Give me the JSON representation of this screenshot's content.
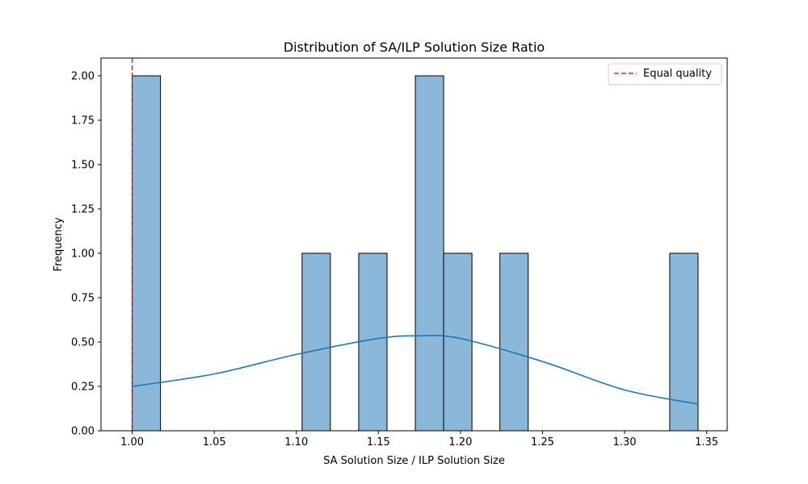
{
  "chart_data": {
    "type": "bar",
    "title": "Distribution of SA/ILP Solution Size Ratio",
    "xlabel": "SA Solution Size / ILP Solution Size",
    "ylabel": "Frequency",
    "xlim": [
      0.981,
      1.3625
    ],
    "ylim": [
      0,
      2.1
    ],
    "bin_width": 0.01725,
    "xticks": [
      1.0,
      1.05,
      1.1,
      1.15,
      1.2,
      1.25,
      1.3,
      1.35
    ],
    "xtick_labels": [
      "1.00",
      "1.05",
      "1.10",
      "1.15",
      "1.20",
      "1.25",
      "1.30",
      "1.35"
    ],
    "yticks": [
      0,
      0.25,
      0.5,
      0.75,
      1.0,
      1.25,
      1.5,
      1.75,
      2.0
    ],
    "ytick_labels": [
      "0.00",
      "0.25",
      "0.50",
      "0.75",
      "1.00",
      "1.25",
      "1.50",
      "1.75",
      "2.00"
    ],
    "bars": [
      {
        "x_start": 1.0,
        "count": 2
      },
      {
        "x_start": 1.1035,
        "count": 1
      },
      {
        "x_start": 1.138,
        "count": 1
      },
      {
        "x_start": 1.1725,
        "count": 2
      },
      {
        "x_start": 1.18975,
        "count": 1
      },
      {
        "x_start": 1.224,
        "count": 1
      },
      {
        "x_start": 1.3275,
        "count": 1
      }
    ],
    "kde": {
      "x": [
        1.0,
        1.05,
        1.1,
        1.15,
        1.175,
        1.2,
        1.25,
        1.3,
        1.345
      ],
      "y": [
        0.25,
        0.32,
        0.43,
        0.52,
        0.535,
        0.52,
        0.39,
        0.23,
        0.15
      ]
    },
    "reference_line": {
      "x": 1.0,
      "label": "Equal quality",
      "color": "#d62728",
      "style": "dashed"
    },
    "legend": {
      "position": "top-right",
      "entries": [
        "Equal quality"
      ]
    },
    "colors": {
      "bar_fill": "#8bb8d9",
      "bar_edge": "#000000",
      "kde": "#1f77b4"
    },
    "grid": false
  }
}
